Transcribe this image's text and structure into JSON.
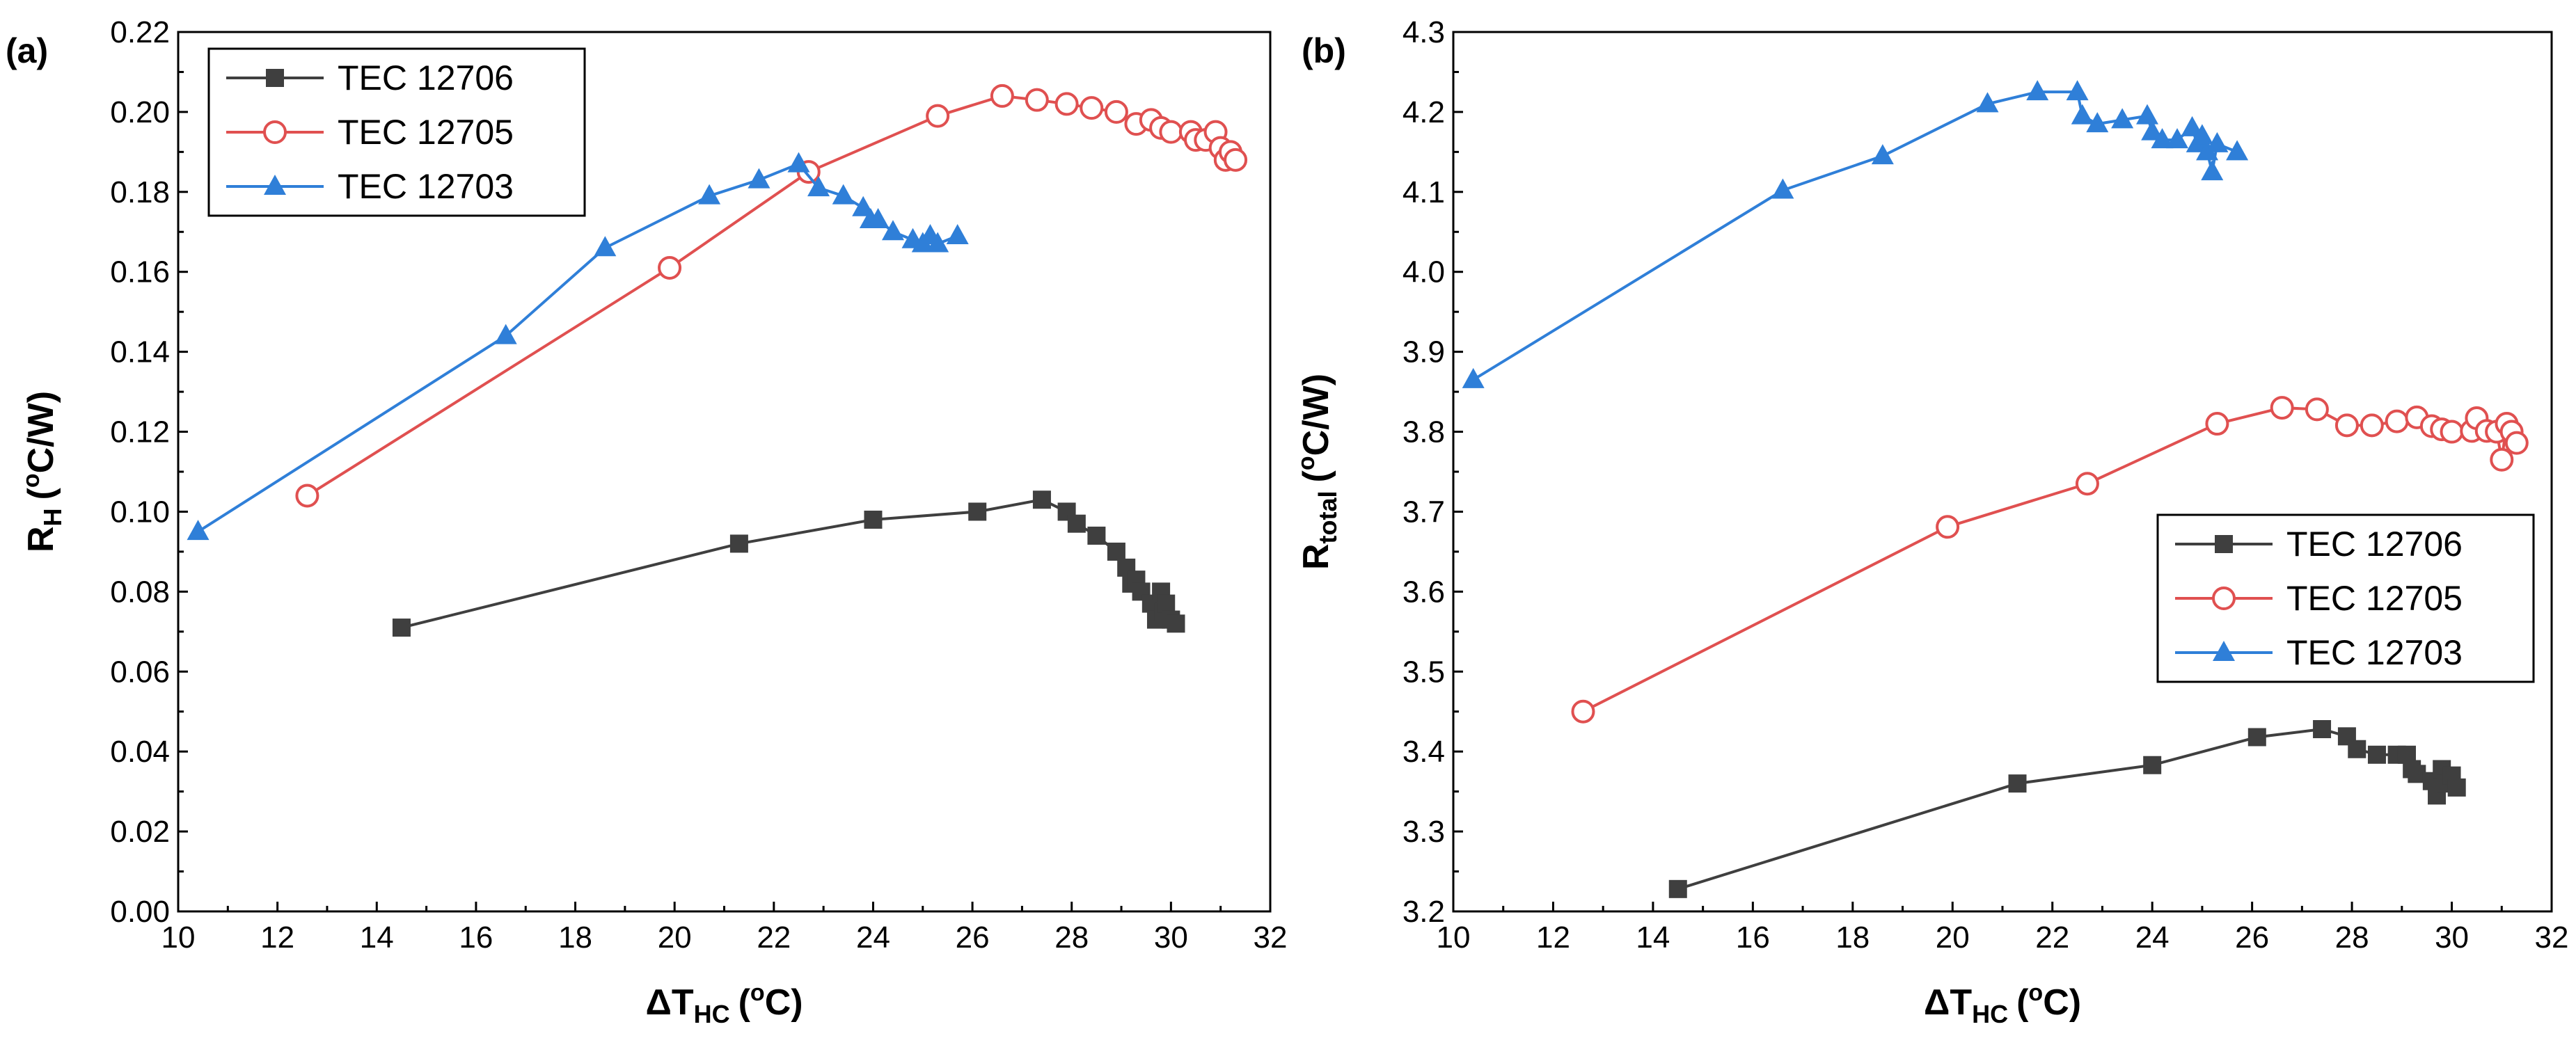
{
  "chart_data": [
    {
      "type": "line",
      "panel_label": "(a)",
      "xlabel_main": "ΔT",
      "xlabel_sub": "HC",
      "xlabel_unit": "(",
      "xlabel_sup": "o",
      "xlabel_tail": "C)",
      "ylabel_main": "R",
      "ylabel_sub": "H",
      "ylabel_unit": "(",
      "ylabel_sup": "o",
      "ylabel_tail": "C/W)",
      "xlim": [
        10,
        32
      ],
      "ylim": [
        0.0,
        0.22
      ],
      "xticks": [
        "10",
        "12",
        "14",
        "16",
        "18",
        "20",
        "22",
        "24",
        "26",
        "28",
        "30",
        "32"
      ],
      "yticks": [
        "0.00",
        "0.02",
        "0.04",
        "0.06",
        "0.08",
        "0.10",
        "0.12",
        "0.14",
        "0.16",
        "0.18",
        "0.20",
        "0.22"
      ],
      "legend_position": "top-left",
      "series": [
        {
          "name": "TEC 12706",
          "color": "#3f3f3f",
          "marker": "square",
          "x": [
            14.5,
            21.3,
            24.0,
            26.1,
            27.4,
            27.9,
            28.1,
            28.5,
            28.9,
            29.1,
            29.2,
            29.3,
            29.4,
            29.6,
            29.7,
            29.8,
            29.85,
            29.9,
            30.0,
            30.1
          ],
          "y": [
            0.071,
            0.092,
            0.098,
            0.1,
            0.103,
            0.1,
            0.097,
            0.094,
            0.09,
            0.086,
            0.082,
            0.083,
            0.08,
            0.077,
            0.073,
            0.08,
            0.075,
            0.077,
            0.073,
            0.072
          ]
        },
        {
          "name": "TEC 12705",
          "color": "#e05050",
          "marker": "circle",
          "x": [
            12.6,
            19.9,
            22.7,
            25.3,
            26.6,
            27.3,
            27.9,
            28.4,
            28.9,
            29.3,
            29.6,
            29.8,
            30.0,
            30.4,
            30.5,
            30.7,
            30.9,
            31.0,
            31.1,
            31.2,
            31.3
          ],
          "y": [
            0.104,
            0.161,
            0.185,
            0.199,
            0.204,
            0.203,
            0.202,
            0.201,
            0.2,
            0.197,
            0.198,
            0.196,
            0.195,
            0.195,
            0.193,
            0.193,
            0.195,
            0.191,
            0.188,
            0.19,
            0.188
          ]
        },
        {
          "name": "TEC 12703",
          "color": "#2f7fd8",
          "marker": "triangle",
          "x": [
            10.4,
            16.6,
            18.6,
            20.7,
            21.7,
            22.5,
            22.9,
            23.4,
            23.8,
            23.95,
            24.1,
            24.4,
            24.8,
            25.0,
            25.15,
            25.3,
            25.7
          ],
          "y": [
            0.095,
            0.144,
            0.166,
            0.179,
            0.183,
            0.187,
            0.181,
            0.179,
            0.176,
            0.173,
            0.173,
            0.17,
            0.168,
            0.167,
            0.169,
            0.167,
            0.169
          ]
        }
      ]
    },
    {
      "type": "line",
      "panel_label": "(b)",
      "xlabel_main": "ΔT",
      "xlabel_sub": "HC",
      "xlabel_unit": "(",
      "xlabel_sup": "o",
      "xlabel_tail": "C)",
      "ylabel_main": "R",
      "ylabel_sub": "total",
      "ylabel_unit": "(",
      "ylabel_sup": "o",
      "ylabel_tail": "C/W)",
      "xlim": [
        10,
        32
      ],
      "ylim": [
        3.2,
        4.3
      ],
      "xticks": [
        "10",
        "12",
        "14",
        "16",
        "18",
        "20",
        "22",
        "24",
        "26",
        "28",
        "30",
        "32"
      ],
      "yticks": [
        "3.2",
        "3.3",
        "3.4",
        "3.5",
        "3.6",
        "3.7",
        "3.8",
        "3.9",
        "4.0",
        "4.1",
        "4.2",
        "4.3"
      ],
      "legend_position": "center-right",
      "series": [
        {
          "name": "TEC 12706",
          "color": "#3f3f3f",
          "marker": "square",
          "x": [
            14.5,
            21.3,
            24.0,
            26.1,
            27.4,
            27.9,
            28.1,
            28.5,
            28.9,
            29.1,
            29.2,
            29.3,
            29.6,
            29.7,
            29.8,
            29.9,
            30.0,
            30.1
          ],
          "y": [
            3.228,
            3.36,
            3.383,
            3.418,
            3.428,
            3.419,
            3.403,
            3.396,
            3.396,
            3.396,
            3.378,
            3.372,
            3.363,
            3.345,
            3.378,
            3.36,
            3.37,
            3.355
          ]
        },
        {
          "name": "TEC 12705",
          "color": "#e05050",
          "marker": "circle",
          "x": [
            12.6,
            19.9,
            22.7,
            25.3,
            26.6,
            27.3,
            27.9,
            28.4,
            28.9,
            29.3,
            29.6,
            29.8,
            30.0,
            30.4,
            30.5,
            30.7,
            30.9,
            31.0,
            31.1,
            31.2,
            31.3
          ],
          "y": [
            3.45,
            3.681,
            3.735,
            3.81,
            3.83,
            3.828,
            3.808,
            3.808,
            3.813,
            3.818,
            3.807,
            3.803,
            3.8,
            3.801,
            3.817,
            3.801,
            3.8,
            3.765,
            3.81,
            3.8,
            3.786
          ]
        },
        {
          "name": "TEC 12703",
          "color": "#2f7fd8",
          "marker": "triangle",
          "x": [
            10.4,
            16.6,
            18.6,
            20.7,
            21.7,
            22.5,
            22.6,
            22.9,
            23.4,
            23.9,
            24.0,
            24.2,
            24.5,
            24.8,
            24.9,
            25.0,
            25.1,
            25.2,
            25.3,
            25.7
          ],
          "y": [
            3.865,
            4.102,
            4.145,
            4.21,
            4.225,
            4.225,
            4.195,
            4.185,
            4.19,
            4.195,
            4.175,
            4.165,
            4.165,
            4.18,
            4.16,
            4.17,
            4.15,
            4.125,
            4.16,
            4.15
          ]
        }
      ]
    }
  ]
}
